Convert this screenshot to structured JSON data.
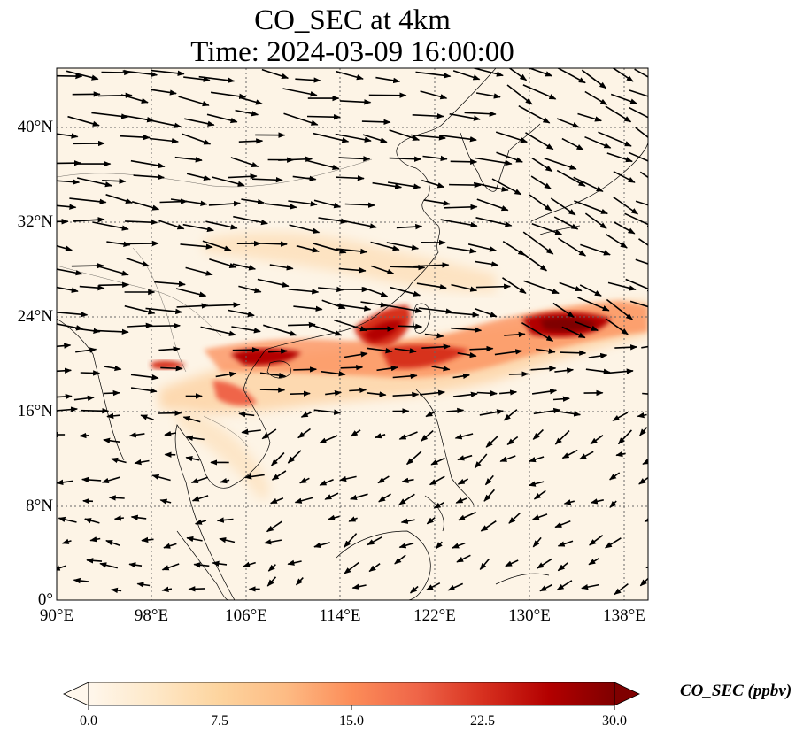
{
  "title": {
    "line1": "CO_SEC at 4km",
    "line2": "Time: 2024-03-09 16:00:00"
  },
  "map": {
    "lon_range": [
      90,
      140
    ],
    "lat_range": [
      0,
      45
    ],
    "gridlines": "dotted",
    "background_color": "#fdf4e6"
  },
  "axes": {
    "x_ticks": [
      "90°E",
      "98°E",
      "106°E",
      "114°E",
      "122°E",
      "130°E",
      "138°E"
    ],
    "y_ticks": [
      "0°",
      "8°N",
      "16°N",
      "24°N",
      "32°N",
      "40°N"
    ]
  },
  "colorbar": {
    "label": "CO_SEC (ppbv)",
    "ticks": [
      "0.0",
      "7.5",
      "15.0",
      "22.5",
      "30.0"
    ],
    "range": [
      0,
      30
    ],
    "extend": "both",
    "colormap": "OrRd",
    "colors": [
      "#fff7ec",
      "#fee8c8",
      "#fdd49e",
      "#fdbb84",
      "#fc8d59",
      "#ef6548",
      "#d7301f",
      "#b30000",
      "#7f0000"
    ]
  }
}
